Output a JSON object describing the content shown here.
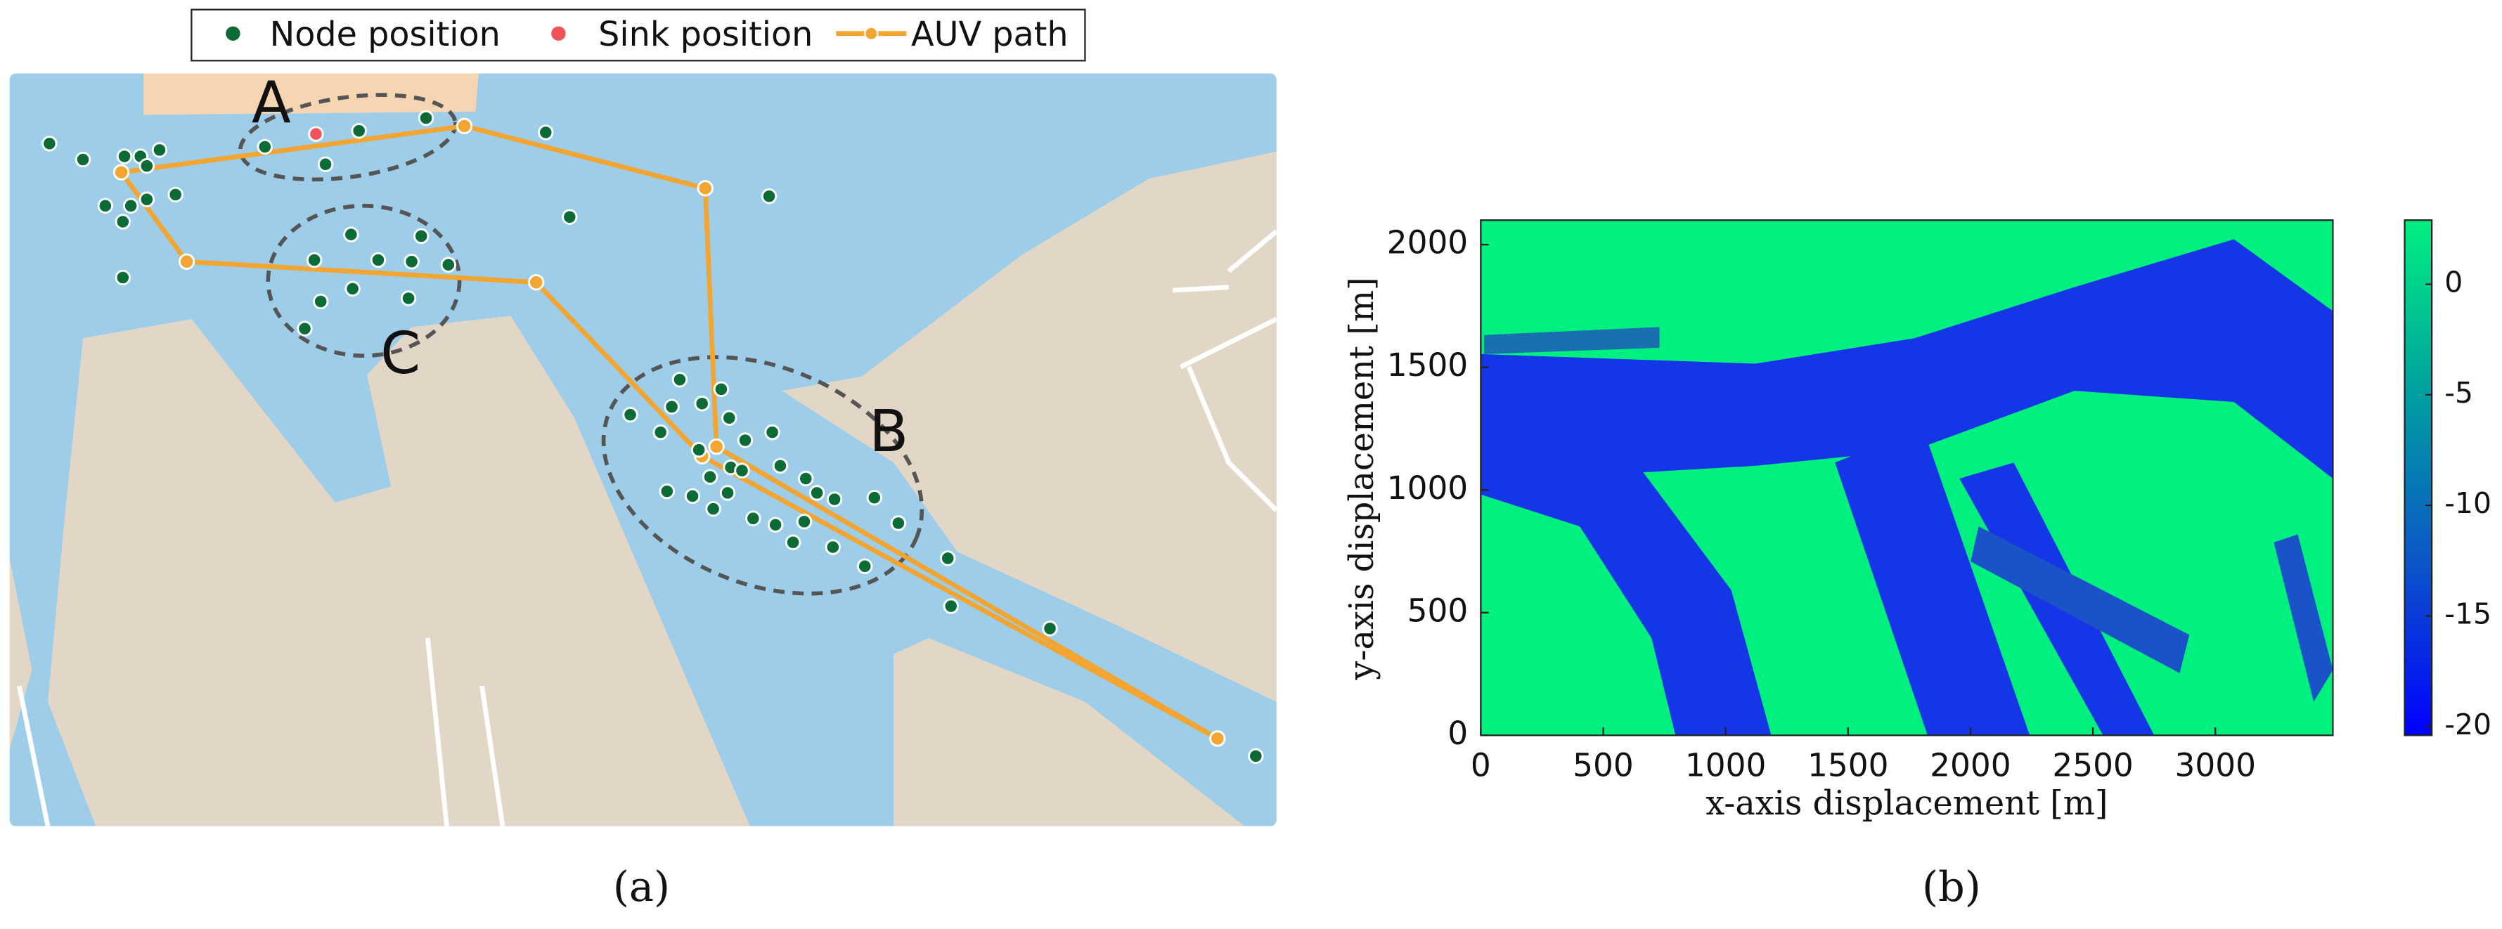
{
  "chart_data": [
    {
      "type": "map",
      "legend_position": "top",
      "xlim": [
        6,
        800
      ],
      "ylim": [
        518,
        46
      ],
      "water_color": "#9dcde9",
      "land_color": "#e2d7c7",
      "series": [
        {
          "name": "Node position",
          "kind": "scatter",
          "color": "#0b6b36",
          "x": [
            31,
            52,
            78,
            88,
            100,
            92,
            110,
            66,
            82,
            92,
            77,
            77,
            166,
            204,
            225,
            267,
            342,
            482,
            357,
            220,
            264,
            197,
            237,
            258,
            281,
            221,
            256,
            201,
            191,
            426,
            452,
            440,
            421,
            457,
            395,
            414,
            484,
            467,
            438,
            445,
            458,
            465,
            489,
            505,
            418,
            434,
            456,
            447,
            512,
            523,
            548,
            472,
            486,
            504,
            563,
            497,
            522,
            542,
            594,
            596,
            658,
            787
          ],
          "values": [
            90,
            100,
            98,
            98,
            94,
            104,
            122,
            129,
            129,
            125,
            139,
            174,
            92,
            103,
            82,
            74,
            83,
            123,
            136,
            147,
            148,
            163,
            163,
            164,
            166,
            181,
            187,
            189,
            206,
            238,
            244,
            253,
            255,
            262,
            260,
            271,
            271,
            276,
            282,
            299,
            293,
            295,
            292,
            300,
            308,
            311,
            309,
            319,
            309,
            313,
            312,
            325,
            329,
            327,
            328,
            340,
            343,
            355,
            350,
            380,
            394,
            474
          ]
        },
        {
          "name": "Sink position",
          "kind": "scatter",
          "color": "#f0525a",
          "x": [
            198
          ],
          "values": [
            84
          ]
        },
        {
          "name": "AUV path",
          "kind": "line",
          "color": "#f2a531",
          "x": [
            763,
            449,
            442,
            291,
            76,
            117,
            336,
            440,
            763
          ],
          "values": [
            463,
            280,
            118,
            79,
            108,
            164,
            177,
            286,
            463
          ]
        }
      ],
      "annotations": [
        "A",
        "B",
        "C"
      ],
      "caption": "(a)"
    },
    {
      "type": "heatmap",
      "xlabel": "x-axis displacement [m]",
      "ylabel": "y-axis displacement [m]",
      "xlim": [
        0,
        3480
      ],
      "ylim": [
        0,
        2100
      ],
      "xticks": [
        0,
        500,
        1000,
        1500,
        2000,
        2500,
        3000
      ],
      "yticks": [
        0,
        500,
        1000,
        1500,
        2000
      ],
      "colorbar": {
        "clim": [
          -20.4,
          2.9
        ],
        "ticks": [
          0,
          -5,
          -10,
          -15,
          -20
        ],
        "colors": [
          "#0000ff",
          "#0b55c8",
          "#00a0a0",
          "#00f080"
        ]
      },
      "caption": "(b)"
    }
  ]
}
